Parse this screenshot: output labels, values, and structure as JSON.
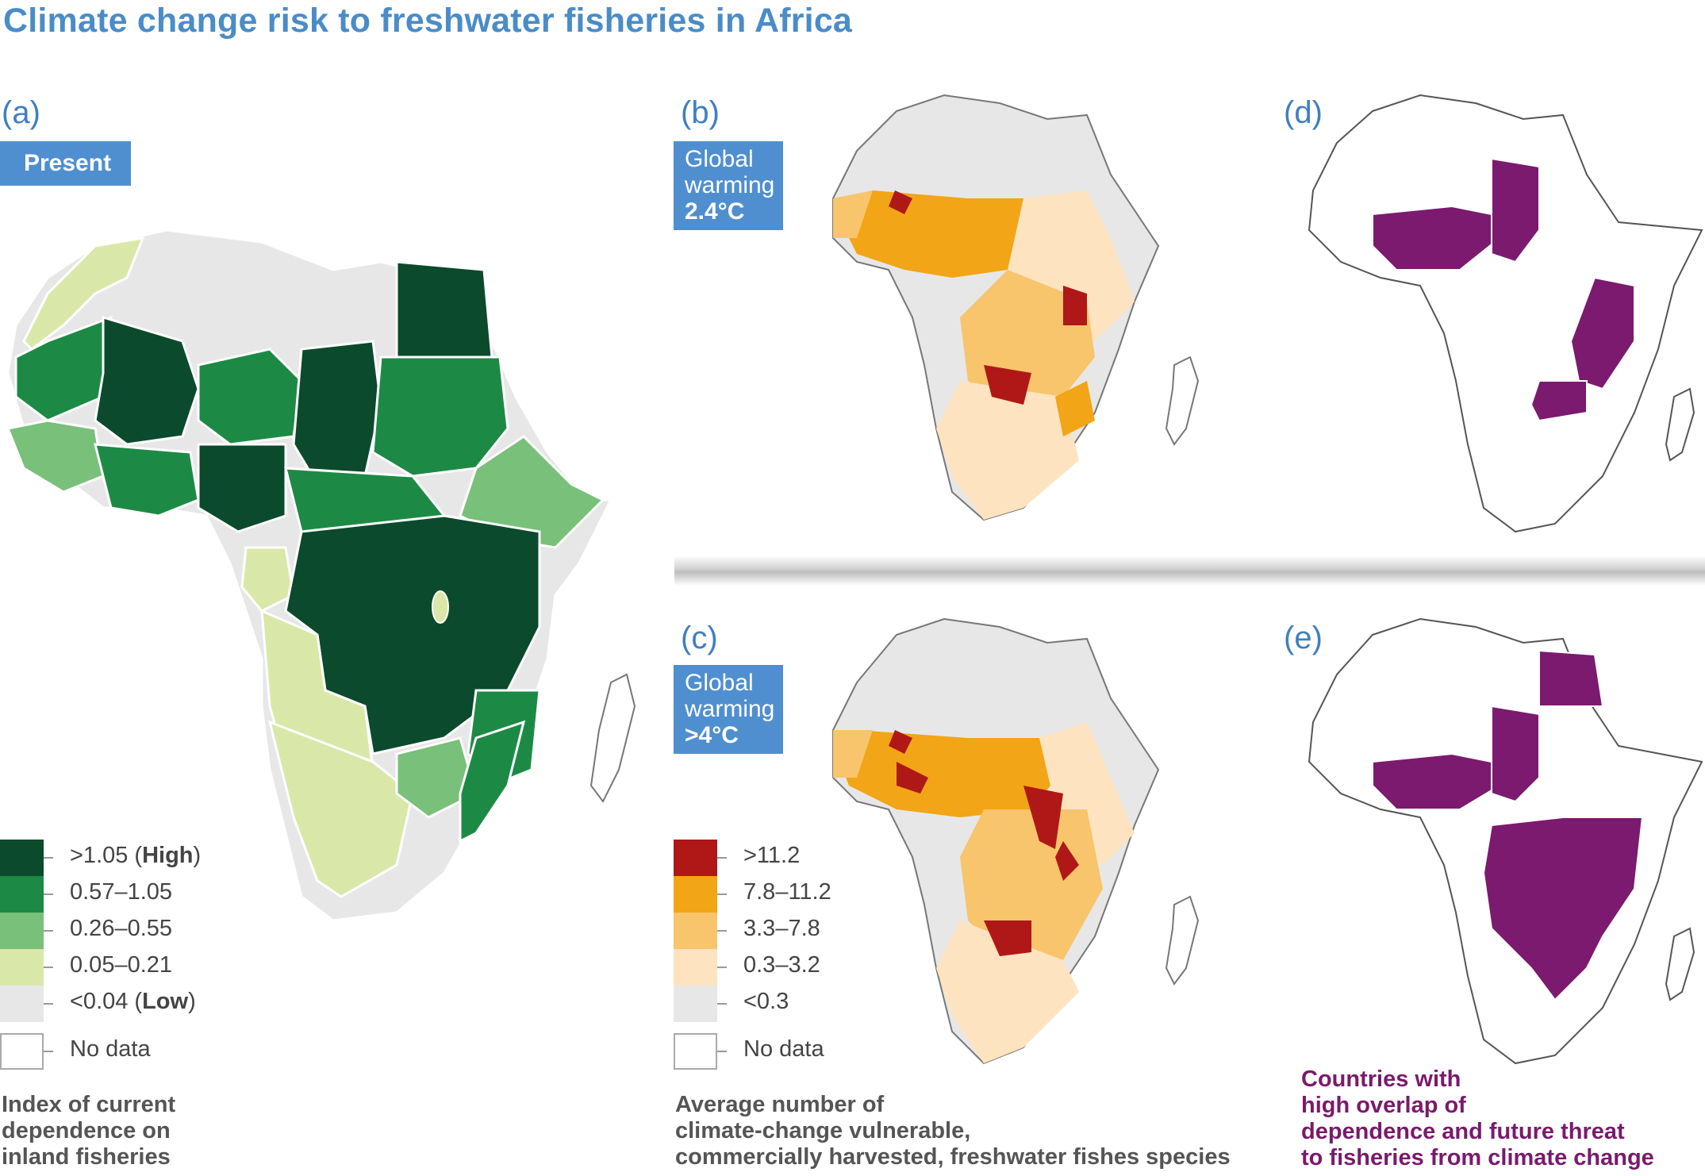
{
  "title": "Climate change risk to freshwater fisheries in Africa",
  "panels": {
    "a": {
      "letter": "(a)",
      "badge": "Present"
    },
    "b": {
      "letter": "(b)",
      "badge_line1": "Global",
      "badge_line2": "warming",
      "badge_line3": "2.4°C"
    },
    "c": {
      "letter": "(c)",
      "badge_line1": "Global",
      "badge_line2": "warming",
      "badge_line3": ">4°C"
    },
    "d": {
      "letter": "(d)"
    },
    "e": {
      "letter": "(e)"
    }
  },
  "legend_dependence": {
    "items": [
      {
        "label": ">1.05  (",
        "bold": "High",
        "suffix": ")",
        "color": "#0b4a2c"
      },
      {
        "label": "0.57–1.05",
        "bold": "",
        "suffix": "",
        "color": "#1c8a45"
      },
      {
        "label": "0.26–0.55",
        "bold": "",
        "suffix": "",
        "color": "#79c07a"
      },
      {
        "label": "0.05–0.21",
        "bold": "",
        "suffix": "",
        "color": "#d9e8a8"
      },
      {
        "label": "<0.04 (",
        "bold": "Low",
        "suffix": ")",
        "color": "#e7e7e7"
      },
      {
        "label": "No data",
        "bold": "",
        "suffix": "",
        "color": "#ffffff"
      }
    ],
    "caption_line1": "Index of current",
    "caption_line2": "dependence on",
    "caption_line3": "inland fisheries"
  },
  "legend_species": {
    "items": [
      {
        "label": ">11.2",
        "color": "#b01818"
      },
      {
        "label": "7.8–11.2",
        "color": "#f2a516"
      },
      {
        "label": "3.3–7.8",
        "color": "#f8c46c"
      },
      {
        "label": "0.3–3.2",
        "color": "#fde3c0"
      },
      {
        "label": "<0.3",
        "color": "#e7e7e7"
      },
      {
        "label": "No data",
        "color": "#ffffff"
      }
    ],
    "caption_line1": "Average number of",
    "caption_line2": "climate-change vulnerable,",
    "caption_line3": "commercially harvested, freshwater fishes species"
  },
  "overlap_caption": {
    "line1": "Countries with",
    "line2": "high overlap of",
    "line3": "dependence and future threat",
    "line4": "to fisheries from climate change",
    "color": "#7a1a6c"
  },
  "colors": {
    "title": "#4a8cc7",
    "badge": "#4f8fd0",
    "overlap": "#7b1a6e",
    "land_grey": "#e7e7e7"
  }
}
